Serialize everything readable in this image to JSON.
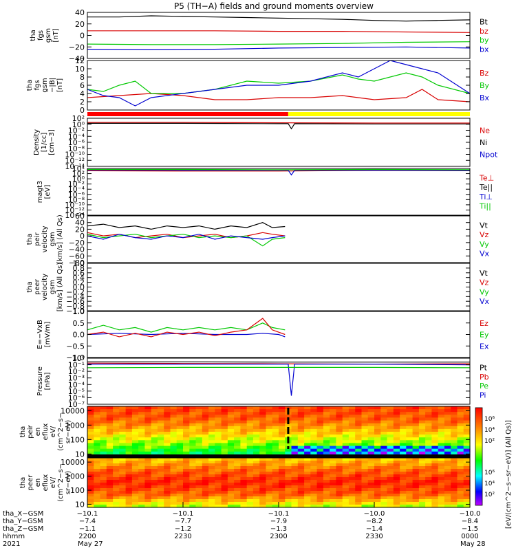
{
  "title": "P5 (TH−A) fields and ground moments overview",
  "colorbar_label": "[eV/(cm^2−s−sr−eV)] (All Qs)]",
  "colorbar_ticks": [
    "10⁶",
    "10⁴",
    "10²"
  ],
  "x_axis": {
    "row_labels": [
      "tha_X−GSM",
      "tha_Y−GSM",
      "tha_Z−GSM",
      "hhmm",
      "2021"
    ],
    "ticks": [
      {
        "time": 0,
        "values": [
          "−10.1",
          "−7.4",
          "−1.1",
          "2200",
          "May 27"
        ]
      },
      {
        "time": 30,
        "values": [
          "−10.1",
          "−7.7",
          "−1.2",
          "2230",
          ""
        ]
      },
      {
        "time": 60,
        "values": [
          "−10.1",
          "−7.9",
          "−1.3",
          "2300",
          ""
        ]
      },
      {
        "time": 90,
        "values": [
          "−10.0",
          "−8.2",
          "−1.4",
          "2330",
          ""
        ]
      },
      {
        "time": 120,
        "values": [
          "−10.0",
          "−8.4",
          "−1.5",
          "0000",
          "May 28"
        ]
      }
    ]
  },
  "status_bar": {
    "red_until_time": 63,
    "colors": [
      "#ff0000",
      "#ffff00"
    ]
  },
  "chart_data": [
    {
      "type": "line",
      "name": "fgs gsm",
      "ylabel": [
        "tha",
        "fgs",
        "gsm",
        "[nT]"
      ],
      "ylim": [
        -40,
        40
      ],
      "yticks": [
        40,
        20,
        0,
        -20,
        -40
      ],
      "legend": [
        [
          "Bt",
          "#000000"
        ],
        [
          "bz",
          "#d80000"
        ],
        [
          "by",
          "#00c800"
        ],
        [
          "bx",
          "#0000d0"
        ]
      ],
      "series": [
        {
          "name": "Bt",
          "color": "#000000",
          "x": [
            0,
            10,
            20,
            30,
            40,
            50,
            60,
            70,
            80,
            90,
            100,
            110,
            120
          ],
          "y": [
            32,
            32,
            34,
            33,
            32,
            31,
            30,
            29,
            28,
            26,
            25,
            26,
            27
          ]
        },
        {
          "name": "bz",
          "color": "#d80000",
          "x": [
            0,
            20,
            40,
            60,
            80,
            100,
            120
          ],
          "y": [
            8,
            8,
            8,
            7,
            7,
            6,
            5
          ]
        },
        {
          "name": "by",
          "color": "#00c800",
          "x": [
            0,
            20,
            40,
            60,
            80,
            100,
            120
          ],
          "y": [
            -15,
            -16,
            -16,
            -15,
            -14,
            -12,
            -11
          ]
        },
        {
          "name": "bx",
          "color": "#0000d0",
          "x": [
            0,
            20,
            40,
            60,
            80,
            100,
            120
          ],
          "y": [
            -24,
            -25,
            -24,
            -22,
            -21,
            -20,
            -22
          ]
        }
      ]
    },
    {
      "type": "line",
      "name": "fgs gsm -Bt",
      "ylabel": [
        "tha",
        "fgs",
        "gsm",
        "−|B|",
        "[nT]"
      ],
      "ylim": [
        0,
        12
      ],
      "yticks": [
        12,
        10,
        8,
        6,
        4,
        2,
        0
      ],
      "legend": [
        [
          "Bz",
          "#d80000"
        ],
        [
          "By",
          "#00c800"
        ],
        [
          "Bx",
          "#0000d0"
        ]
      ],
      "series": [
        {
          "name": "Bz",
          "color": "#d80000",
          "x": [
            0,
            10,
            20,
            30,
            40,
            50,
            60,
            70,
            80,
            90,
            100,
            105,
            110,
            120
          ],
          "y": [
            3,
            3.5,
            4,
            3.5,
            2.5,
            2.5,
            3,
            3,
            3.5,
            2.5,
            3,
            5,
            2.5,
            2
          ]
        },
        {
          "name": "By",
          "color": "#00c800",
          "x": [
            0,
            5,
            10,
            15,
            20,
            30,
            40,
            50,
            60,
            70,
            80,
            85,
            90,
            100,
            105,
            110,
            120
          ],
          "y": [
            5,
            4.5,
            6,
            7,
            4,
            4,
            5,
            7,
            6.5,
            7,
            8.5,
            7.5,
            7,
            9,
            8,
            6,
            4
          ]
        },
        {
          "name": "Bx",
          "color": "#0000d0",
          "x": [
            0,
            5,
            10,
            15,
            20,
            30,
            40,
            50,
            60,
            70,
            80,
            85,
            90,
            95,
            100,
            110,
            120
          ],
          "y": [
            5,
            3.5,
            3,
            1,
            3,
            4,
            5,
            6,
            6,
            7,
            9,
            8,
            10,
            12,
            11,
            9,
            4
          ]
        }
      ]
    },
    {
      "type": "line",
      "name": "Density",
      "scale": "log",
      "ylabel": [
        "Density",
        "[1/cc]",
        "[cm−3]"
      ],
      "ylim": [
        -14,
        2
      ],
      "yticks": [
        2,
        0,
        -2,
        -4,
        -6,
        -8,
        -10,
        -12,
        -14
      ],
      "legend": [
        [
          "Ne",
          "#d80000"
        ],
        [
          "Ni",
          "#000000"
        ],
        [
          "Npot",
          "#0000d0"
        ]
      ],
      "series": [
        {
          "name": "Ne",
          "color": "#d80000",
          "x": [
            0,
            30,
            60,
            90,
            120
          ],
          "y": [
            0.6,
            0.6,
            0.5,
            0.4,
            0.4
          ]
        },
        {
          "name": "Ni",
          "color": "#000000",
          "x": [
            0,
            30,
            60,
            63,
            64,
            65,
            90,
            120
          ],
          "y": [
            0.3,
            0.3,
            0.2,
            0.2,
            -1.5,
            0.2,
            0.1,
            0.1
          ]
        }
      ]
    },
    {
      "type": "line",
      "name": "magt3",
      "scale": "log",
      "ylabel": [
        "magt3",
        "[eV]"
      ],
      "ylim": [
        -14,
        4
      ],
      "yticks": [
        4,
        2,
        0,
        -2,
        -4,
        -6,
        -8,
        -10,
        -12,
        -14
      ],
      "legend": [
        [
          "Te⊥",
          "#d80000"
        ],
        [
          "Te||",
          "#000000"
        ],
        [
          "Ti⊥",
          "#0000d0"
        ],
        [
          "Ti||",
          "#00c800"
        ]
      ],
      "series": [
        {
          "name": "Te⊥",
          "color": "#d80000",
          "x": [
            0,
            30,
            60,
            90,
            120
          ],
          "y": [
            3.1,
            3.0,
            3.0,
            3.2,
            3.1
          ]
        },
        {
          "name": "Ti⊥",
          "color": "#0000d0",
          "x": [
            0,
            30,
            60,
            63,
            64,
            65,
            90,
            120
          ],
          "y": [
            3.4,
            3.3,
            3.3,
            3.3,
            1.5,
            3.3,
            3.3,
            3.2
          ]
        },
        {
          "name": "Ti||",
          "color": "#00c800",
          "x": [
            0,
            30,
            60,
            90,
            120
          ],
          "y": [
            3.6,
            3.6,
            3.5,
            3.6,
            3.5
          ]
        }
      ]
    },
    {
      "type": "line",
      "name": "peir velocity",
      "ylabel": [
        "tha",
        "peir",
        "velocity",
        "gsm",
        "[km/s] (All Qs)"
      ],
      "ylim": [
        -80,
        60
      ],
      "yticks": [
        60,
        40,
        20,
        0,
        -20,
        -40,
        -60,
        -80
      ],
      "legend": [
        [
          "Vt",
          "#000000"
        ],
        [
          "Vz",
          "#d80000"
        ],
        [
          "Vy",
          "#00c800"
        ],
        [
          "Vx",
          "#0000d0"
        ]
      ],
      "series": [
        {
          "name": "Vt",
          "color": "#000000",
          "x": [
            0,
            5,
            10,
            15,
            20,
            25,
            30,
            35,
            40,
            45,
            50,
            55,
            58,
            62
          ],
          "y": [
            30,
            35,
            25,
            30,
            20,
            30,
            25,
            30,
            20,
            30,
            25,
            40,
            25,
            28
          ]
        },
        {
          "name": "Vz",
          "color": "#d80000",
          "x": [
            0,
            5,
            10,
            15,
            20,
            25,
            30,
            35,
            40,
            45,
            50,
            55,
            58,
            62
          ],
          "y": [
            10,
            0,
            5,
            -5,
            0,
            5,
            -5,
            0,
            5,
            -5,
            0,
            10,
            5,
            0
          ]
        },
        {
          "name": "Vy",
          "color": "#00c800",
          "x": [
            0,
            5,
            10,
            15,
            20,
            25,
            30,
            35,
            40,
            45,
            50,
            55,
            58,
            62
          ],
          "y": [
            5,
            -5,
            0,
            5,
            -5,
            0,
            5,
            -5,
            0,
            -5,
            0,
            -30,
            -10,
            -5
          ]
        },
        {
          "name": "Vx",
          "color": "#0000d0",
          "x": [
            0,
            5,
            10,
            15,
            20,
            25,
            30,
            35,
            40,
            45,
            50,
            55,
            58,
            62
          ],
          "y": [
            0,
            -10,
            5,
            -5,
            -10,
            0,
            -5,
            5,
            -10,
            0,
            -5,
            -10,
            -5,
            0
          ]
        }
      ]
    },
    {
      "type": "line",
      "name": "peer velocity",
      "ylabel": [
        "tha",
        "peer",
        "velocity",
        "gsm",
        "[km/s] (All Qs)"
      ],
      "ylim": [
        -1,
        1
      ],
      "yticks": [
        1.0,
        0.8,
        0.6,
        0.4,
        0.2,
        0.0,
        -0.2,
        -0.4,
        -0.6,
        -0.8,
        -1.0
      ],
      "legend": [
        [
          "Vt",
          "#000000"
        ],
        [
          "Vz",
          "#d80000"
        ],
        [
          "Vy",
          "#00c800"
        ],
        [
          "Vx",
          "#0000d0"
        ]
      ],
      "series": []
    },
    {
      "type": "line",
      "name": "E = -VxB",
      "ylabel": [
        "E=−VxB",
        "[mV/m]"
      ],
      "ylim": [
        -1,
        1
      ],
      "yticks": [
        1.0,
        0.5,
        0.0,
        -0.5,
        -1.0
      ],
      "legend": [
        [
          "Ez",
          "#d80000"
        ],
        [
          "Ey",
          "#00c800"
        ],
        [
          "Ex",
          "#0000d0"
        ]
      ],
      "series": [
        {
          "name": "Ex",
          "color": "#0000d0",
          "x": [
            0,
            10,
            20,
            30,
            40,
            50,
            55,
            60,
            62
          ],
          "y": [
            0.0,
            0.05,
            0.0,
            0.05,
            0.0,
            0.0,
            0.05,
            0.0,
            -0.1
          ]
        },
        {
          "name": "Ey",
          "color": "#00c800",
          "x": [
            0,
            5,
            10,
            15,
            20,
            25,
            30,
            35,
            40,
            45,
            50,
            55,
            58,
            62
          ],
          "y": [
            0.2,
            0.4,
            0.2,
            0.3,
            0.1,
            0.3,
            0.2,
            0.3,
            0.2,
            0.3,
            0.2,
            0.5,
            0.3,
            0.2
          ]
        },
        {
          "name": "Ez",
          "color": "#d80000",
          "x": [
            0,
            5,
            10,
            15,
            20,
            25,
            30,
            35,
            40,
            45,
            50,
            55,
            58,
            62
          ],
          "y": [
            0.0,
            0.1,
            -0.1,
            0.05,
            -0.1,
            0.1,
            0.0,
            0.1,
            -0.05,
            0.1,
            0.2,
            0.7,
            0.2,
            0.0
          ]
        }
      ]
    },
    {
      "type": "line",
      "name": "Pressure",
      "scale": "log",
      "ylabel": [
        "Pressure",
        "[nPa]"
      ],
      "ylim": [
        -7,
        0
      ],
      "yticks": [
        0,
        -1,
        -2,
        -3,
        -4,
        -5,
        -6,
        -7
      ],
      "legend": [
        [
          "Pt",
          "#000000"
        ],
        [
          "Pb",
          "#d80000"
        ],
        [
          "Pe",
          "#00c800"
        ],
        [
          "Pi",
          "#0000d0"
        ]
      ],
      "series": [
        {
          "name": "Pt",
          "color": "#000000",
          "x": [
            0,
            30,
            60,
            90,
            120
          ],
          "y": [
            -0.55,
            -0.55,
            -0.6,
            -0.6,
            -0.6
          ]
        },
        {
          "name": "Pb",
          "color": "#d80000",
          "x": [
            0,
            30,
            60,
            90,
            120
          ],
          "y": [
            -0.75,
            -0.8,
            -0.85,
            -0.9,
            -0.85
          ]
        },
        {
          "name": "Pi",
          "color": "#0000d0",
          "x": [
            0,
            30,
            60,
            63,
            64,
            65,
            90,
            120
          ],
          "y": [
            -0.9,
            -0.9,
            -0.9,
            -0.9,
            -5.7,
            -0.9,
            -0.9,
            -1.0
          ]
        },
        {
          "name": "Pe",
          "color": "#00c800",
          "x": [
            0,
            30,
            60,
            90,
            120
          ],
          "y": [
            -1.45,
            -1.4,
            -1.4,
            -1.4,
            -1.45
          ]
        }
      ]
    },
    {
      "type": "heatmap",
      "name": "peir en eflux",
      "ylabel": [
        "tha",
        "peir",
        "en",
        "eflux",
        "eV/",
        "(cm^2−s−",
        "sr−eV)"
      ],
      "ylim": [
        6,
        20000
      ],
      "yticks": [
        10000,
        1000,
        100,
        10
      ],
      "x": [
        0,
        10,
        20,
        30,
        40,
        50,
        63,
        70,
        80,
        90,
        100,
        110,
        120
      ],
      "levels": [
        0.9,
        0.85,
        0.7,
        0.55,
        0.4
      ],
      "cutoff_time": 63
    },
    {
      "type": "heatmap",
      "name": "peer en eflux",
      "ylabel": [
        "tha",
        "peer",
        "en",
        "eflux",
        "eV/",
        "(cm^2−s−",
        "sr−eV)"
      ],
      "ylim": [
        6,
        20000
      ],
      "yticks": [
        10000,
        1000,
        100,
        10
      ],
      "x": [
        0,
        20,
        40,
        60,
        80,
        100,
        120
      ],
      "levels": [
        0.7,
        0.85,
        0.95,
        0.85,
        0.6
      ]
    }
  ]
}
